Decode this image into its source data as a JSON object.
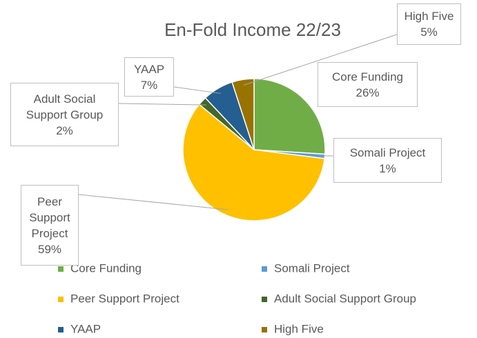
{
  "chart_data": {
    "type": "pie",
    "title": "En-Fold Income 22/23",
    "categories": [
      "Core Funding",
      "Somali Project",
      "Peer Support Project",
      "Adult Social Support Group",
      "YAAP",
      "High Five"
    ],
    "values": [
      26,
      1,
      59,
      2,
      7,
      5
    ],
    "value_labels": [
      "26%",
      "1%",
      "59%",
      "2%",
      "7%",
      "5%"
    ],
    "colors": [
      "#70ad47",
      "#5b9bd5",
      "#ffc000",
      "#43682b",
      "#255e91",
      "#997300"
    ],
    "legend": "bottom"
  }
}
